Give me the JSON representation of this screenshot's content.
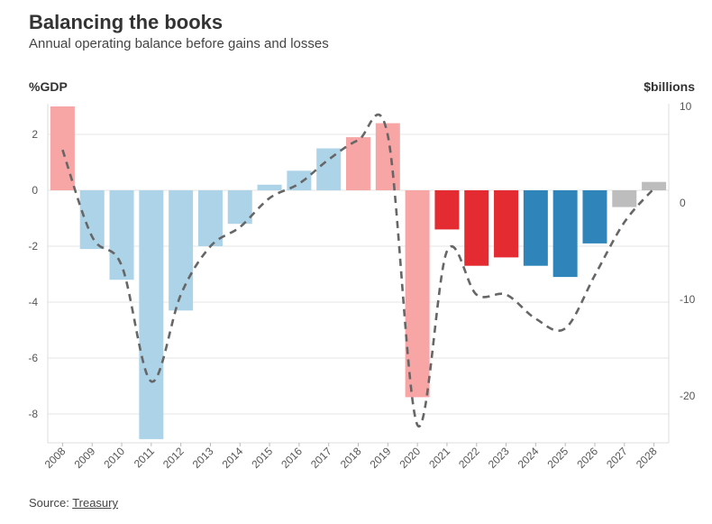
{
  "header": {
    "title": "Balancing the books",
    "subtitle": "Annual operating balance before gains and losses"
  },
  "source": {
    "label": "Source: ",
    "link": "Treasury"
  },
  "chart_data": {
    "type": "bar",
    "title": "Balancing the books",
    "subtitle": "Annual operating balance before gains and losses",
    "ylabel": "%GDP",
    "y2label": "$billions",
    "categories": [
      "2008",
      "2009",
      "2010",
      "2011",
      "2012",
      "2013",
      "2014",
      "2015",
      "2016",
      "2017",
      "2018",
      "2019",
      "2020",
      "2021",
      "2022",
      "2023",
      "2024",
      "2025",
      "2026",
      "2027",
      "2028"
    ],
    "ylim": [
      -9,
      3
    ],
    "yticks": [
      2,
      0,
      -2,
      -4,
      -6,
      -8
    ],
    "y2lim": [
      -25,
      10
    ],
    "y2ticks": [
      10,
      0,
      -10,
      -20
    ],
    "grid": true,
    "series": [
      {
        "type": "bar",
        "axis": "left",
        "values": [
          3.0,
          -2.1,
          -3.2,
          -8.9,
          -4.3,
          -2.0,
          -1.2,
          0.2,
          0.7,
          1.5,
          1.9,
          2.4,
          -7.4,
          -1.4,
          -2.7,
          -2.4,
          -2.7,
          -3.1,
          -1.9,
          -0.6,
          0.3
        ],
        "colors": [
          "#f8a5a6",
          "#acd3e8",
          "#acd3e8",
          "#acd3e8",
          "#acd3e8",
          "#acd3e8",
          "#acd3e8",
          "#acd3e8",
          "#acd3e8",
          "#acd3e8",
          "#f8a5a6",
          "#f8a5a6",
          "#f8a5a6",
          "#e32b31",
          "#e32b31",
          "#e32b31",
          "#2f85ba",
          "#2f85ba",
          "#2f85ba",
          "#bdbdbd",
          "#bdbdbd"
        ]
      },
      {
        "type": "line",
        "axis": "right",
        "style": "dashed",
        "color": "#666666",
        "values": [
          5.5,
          -3.5,
          -6.5,
          -18.5,
          -9.5,
          -4.5,
          -2.5,
          0.5,
          2.0,
          4.5,
          6.5,
          7.0,
          -23.0,
          -5.0,
          -9.5,
          -9.5,
          -12.0,
          -13.0,
          -7.5,
          -2.0,
          1.5
        ]
      }
    ]
  }
}
